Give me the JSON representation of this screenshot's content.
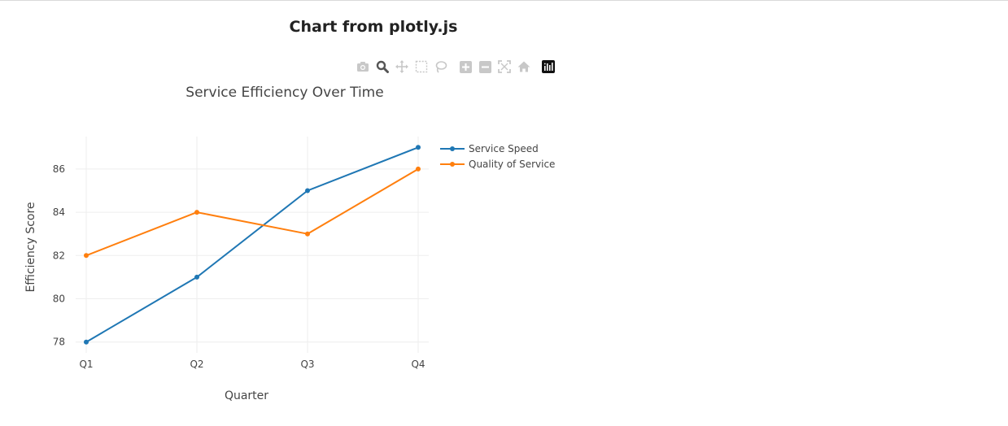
{
  "page": {
    "heading": "Chart from plotly.js"
  },
  "modebar": {
    "icons": [
      "camera-icon",
      "zoom-icon",
      "pan-icon",
      "box-select-icon",
      "lasso-icon",
      "zoom-in-icon",
      "zoom-out-icon",
      "autoscale-icon",
      "home-icon",
      "plotly-logo-icon"
    ]
  },
  "chart_data": {
    "type": "line",
    "title": "Service Efficiency Over Time",
    "xlabel": "Quarter",
    "ylabel": "Efficiency Score",
    "categories": [
      "Q1",
      "Q2",
      "Q3",
      "Q4"
    ],
    "ylim": [
      77.5,
      87.5
    ],
    "yticks": [
      78,
      80,
      82,
      84,
      86
    ],
    "grid": true,
    "legend_position": "top-right",
    "series": [
      {
        "name": "Service Speed",
        "values": [
          78,
          81,
          85,
          87
        ],
        "color": "#1f77b4"
      },
      {
        "name": "Quality of Service",
        "values": [
          82,
          84,
          83,
          86
        ],
        "color": "#ff7f0e"
      }
    ]
  }
}
